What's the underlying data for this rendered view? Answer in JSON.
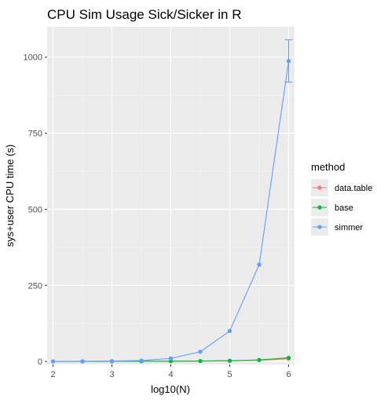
{
  "chart_data": {
    "type": "line",
    "title": "CPU Sim Usage Sick/Sicker in R",
    "xlabel": "log10(N)",
    "ylabel": "sys+user CPU time (s)",
    "xlim": [
      1.9,
      6.1
    ],
    "ylim": [
      -10,
      1100
    ],
    "xticks": [
      2,
      3,
      4,
      5,
      6
    ],
    "yticks": [
      0,
      250,
      500,
      750,
      1000
    ],
    "xtick_labels": [
      "2",
      "3",
      "4",
      "5",
      "6"
    ],
    "ytick_labels": [
      "0",
      "250",
      "500",
      "750",
      "1000"
    ],
    "x": [
      2,
      2.5,
      3,
      3.5,
      4,
      4.5,
      5,
      5.5,
      6
    ],
    "grid": true,
    "legend_position": "right",
    "legend_title": "method",
    "series": [
      {
        "name": "data.table",
        "color": "#F8766D",
        "values": [
          0.1,
          0.2,
          0.3,
          0.5,
          0.8,
          1.2,
          2.0,
          4.0,
          9.0
        ]
      },
      {
        "name": "base",
        "color": "#00BA38",
        "values": [
          0.1,
          0.2,
          0.3,
          0.5,
          0.9,
          1.5,
          2.5,
          5.0,
          12.0
        ]
      },
      {
        "name": "simmer",
        "color": "#619CFF",
        "values": [
          0.2,
          0.6,
          1.2,
          3.0,
          10.0,
          32.0,
          100.0,
          318.0,
          987.0
        ],
        "error_bars": {
          "index": 8,
          "low": 918,
          "high": 1057
        }
      }
    ]
  }
}
